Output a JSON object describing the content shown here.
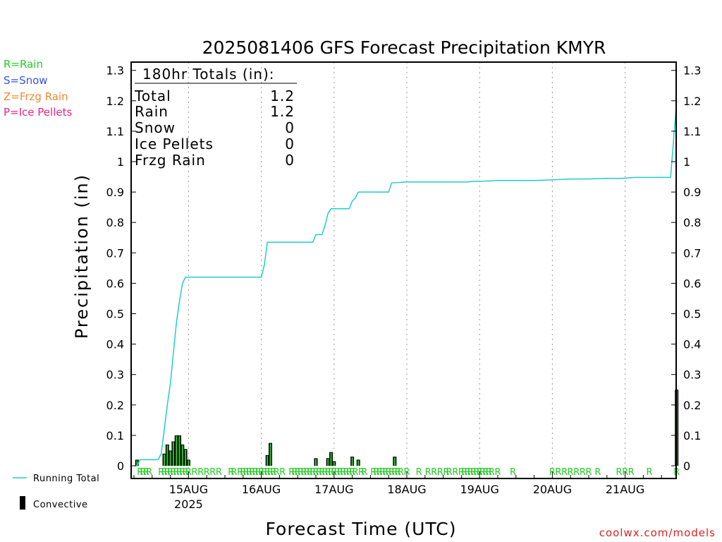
{
  "legend_codes": [
    {
      "text": "R=Rain",
      "color": "#22cc22"
    },
    {
      "text": "S=Snow",
      "color": "#3355dd"
    },
    {
      "text": "Z=Frzg Rain",
      "color": "#ee8833"
    },
    {
      "text": "P=Ice Pellets",
      "color": "#ee2288"
    }
  ],
  "series_legend": {
    "running_total": "Running Total",
    "convective": "Convective"
  },
  "totals": {
    "header": "180hr Totals (in):",
    "rows": [
      {
        "label": "Total",
        "value": "1.2"
      },
      {
        "label": "Rain",
        "value": "1.2"
      },
      {
        "label": "Snow",
        "value": "0"
      },
      {
        "label": "Ice Pellets",
        "value": "0"
      },
      {
        "label": "Frzg Rain",
        "value": "0"
      }
    ]
  },
  "credit": "coolwx.com/models",
  "colors": {
    "running_total": "#22cccc",
    "convective": "#000000",
    "rain_fill": "#22cc22",
    "rain_marker": "#22cc22",
    "credit": "#dd2222",
    "grid": "#999999"
  },
  "chart_data": {
    "type": "line",
    "title": "2025081406 GFS Forecast Precipitation KMYR",
    "xlabel": "Forecast Time (UTC)",
    "ylabel": "Precipitation (in)",
    "ylim": [
      0,
      1.33
    ],
    "xlim_hours": [
      0,
      180
    ],
    "yticks": [
      "0",
      "0.1",
      "0.2",
      "0.3",
      "0.4",
      "0.5",
      "0.6",
      "0.7",
      "0.8",
      "0.9",
      "1",
      "1.1",
      "1.2",
      "1.3"
    ],
    "xticks": [
      {
        "hour": 18,
        "label": "15AUG",
        "sublabel": "2025"
      },
      {
        "hour": 42,
        "label": "16AUG"
      },
      {
        "hour": 66,
        "label": "17AUG"
      },
      {
        "hour": 90,
        "label": "18AUG"
      },
      {
        "hour": 114,
        "label": "19AUG"
      },
      {
        "hour": 138,
        "label": "20AUG"
      },
      {
        "hour": 162,
        "label": "21AUG"
      }
    ],
    "grid": "vertical dotted at day boundaries",
    "running_total": {
      "name": "Running Total",
      "points": [
        [
          0,
          0
        ],
        [
          1,
          0
        ],
        [
          2,
          0.02
        ],
        [
          3,
          0.02
        ],
        [
          4,
          0.02
        ],
        [
          5,
          0.02
        ],
        [
          6,
          0.02
        ],
        [
          7,
          0.02
        ],
        [
          8,
          0.02
        ],
        [
          9,
          0.04
        ],
        [
          10,
          0.12
        ],
        [
          11,
          0.2
        ],
        [
          12,
          0.27
        ],
        [
          13,
          0.37
        ],
        [
          14,
          0.47
        ],
        [
          15,
          0.54
        ],
        [
          16,
          0.6
        ],
        [
          17,
          0.62
        ],
        [
          18,
          0.62
        ],
        [
          24,
          0.62
        ],
        [
          30,
          0.62
        ],
        [
          36,
          0.62
        ],
        [
          40,
          0.62
        ],
        [
          42,
          0.62
        ],
        [
          43,
          0.66
        ],
        [
          44,
          0.735
        ],
        [
          46,
          0.735
        ],
        [
          50,
          0.735
        ],
        [
          54,
          0.735
        ],
        [
          58,
          0.735
        ],
        [
          59,
          0.735
        ],
        [
          60,
          0.76
        ],
        [
          62,
          0.76
        ],
        [
          63,
          0.79
        ],
        [
          64,
          0.83
        ],
        [
          65,
          0.845
        ],
        [
          66,
          0.845
        ],
        [
          68,
          0.845
        ],
        [
          71,
          0.845
        ],
        [
          72,
          0.87
        ],
        [
          73,
          0.88
        ],
        [
          74,
          0.9
        ],
        [
          78,
          0.9
        ],
        [
          84,
          0.9
        ],
        [
          85,
          0.93
        ],
        [
          90,
          0.933
        ],
        [
          96,
          0.933
        ],
        [
          102,
          0.933
        ],
        [
          108,
          0.933
        ],
        [
          110,
          0.933
        ],
        [
          112,
          0.935
        ],
        [
          116,
          0.936
        ],
        [
          120,
          0.938
        ],
        [
          126,
          0.938
        ],
        [
          132,
          0.938
        ],
        [
          138,
          0.94
        ],
        [
          144,
          0.943
        ],
        [
          150,
          0.943
        ],
        [
          156,
          0.945
        ],
        [
          161,
          0.945
        ],
        [
          165,
          0.948
        ],
        [
          171,
          0.948
        ],
        [
          177,
          0.948
        ],
        [
          179,
          1.2
        ]
      ]
    },
    "convective": {
      "name": "Convective",
      "bars": [
        [
          1,
          0.02
        ],
        [
          10,
          0.04
        ],
        [
          11,
          0.07
        ],
        [
          12,
          0.05
        ],
        [
          13,
          0.08
        ],
        [
          14,
          0.1
        ],
        [
          15,
          0.1
        ],
        [
          16,
          0.07
        ],
        [
          17,
          0.055
        ],
        [
          18,
          0.02
        ],
        [
          44,
          0.035
        ],
        [
          45,
          0.075
        ],
        [
          60,
          0.025
        ],
        [
          64,
          0.025
        ],
        [
          65,
          0.045
        ],
        [
          66,
          0.015
        ],
        [
          72,
          0.03
        ],
        [
          74,
          0.02
        ],
        [
          86,
          0.03
        ],
        [
          179,
          0.25
        ]
      ]
    },
    "precip_type_markers": {
      "symbol": "R",
      "hours": [
        2,
        3,
        4,
        5,
        9,
        10,
        11,
        12,
        13,
        14,
        15,
        16,
        17,
        18,
        20,
        22,
        24,
        26,
        28,
        32,
        33,
        35,
        36,
        37,
        38,
        39,
        40,
        41,
        42,
        43,
        44,
        45,
        46,
        47,
        49,
        52,
        53,
        54,
        55,
        56,
        57,
        58,
        59,
        60,
        61,
        62,
        63,
        64,
        65,
        66,
        67,
        68,
        69,
        70,
        71,
        72,
        73,
        75,
        76,
        79,
        80,
        81,
        82,
        83,
        84,
        85,
        86,
        87,
        88,
        90,
        94,
        97,
        99,
        101,
        103,
        104,
        106,
        108,
        109,
        110,
        111,
        112,
        113,
        114,
        115,
        116,
        117,
        118,
        120,
        125,
        138,
        140,
        142,
        144,
        146,
        148,
        150,
        153,
        160,
        162,
        164,
        170,
        179
      ]
    }
  }
}
